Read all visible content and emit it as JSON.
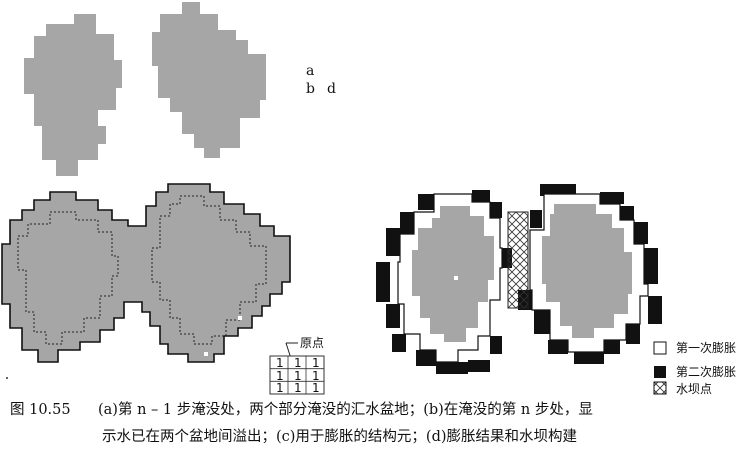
{
  "figure": {
    "panel_labels": {
      "a": "a",
      "b": "b",
      "d": "d"
    },
    "struct_label": "原点",
    "struct_values": [
      "1",
      "1",
      "1",
      "1",
      "1",
      "1",
      "1",
      "1",
      "1"
    ],
    "legend": [
      {
        "label": "第一次膨胀",
        "swatch": "white"
      },
      {
        "label": "第二次膨胀",
        "swatch": "black"
      },
      {
        "label": "水坝点",
        "swatch": "cross"
      }
    ],
    "colors": {
      "basin": "#a6a6a6",
      "boundary": "#111111",
      "outline": "#222222"
    }
  },
  "caption": {
    "number": "图 10.55",
    "line1": "(a)第 n – 1 步淹没处，两个部分淹没的汇水盆地；(b)在淹没的第 n 步处，显",
    "line2": "示水已在两个盆地间溢出；(c)用于膨胀的结构元；(d)膨胀结果和水坝构建"
  }
}
